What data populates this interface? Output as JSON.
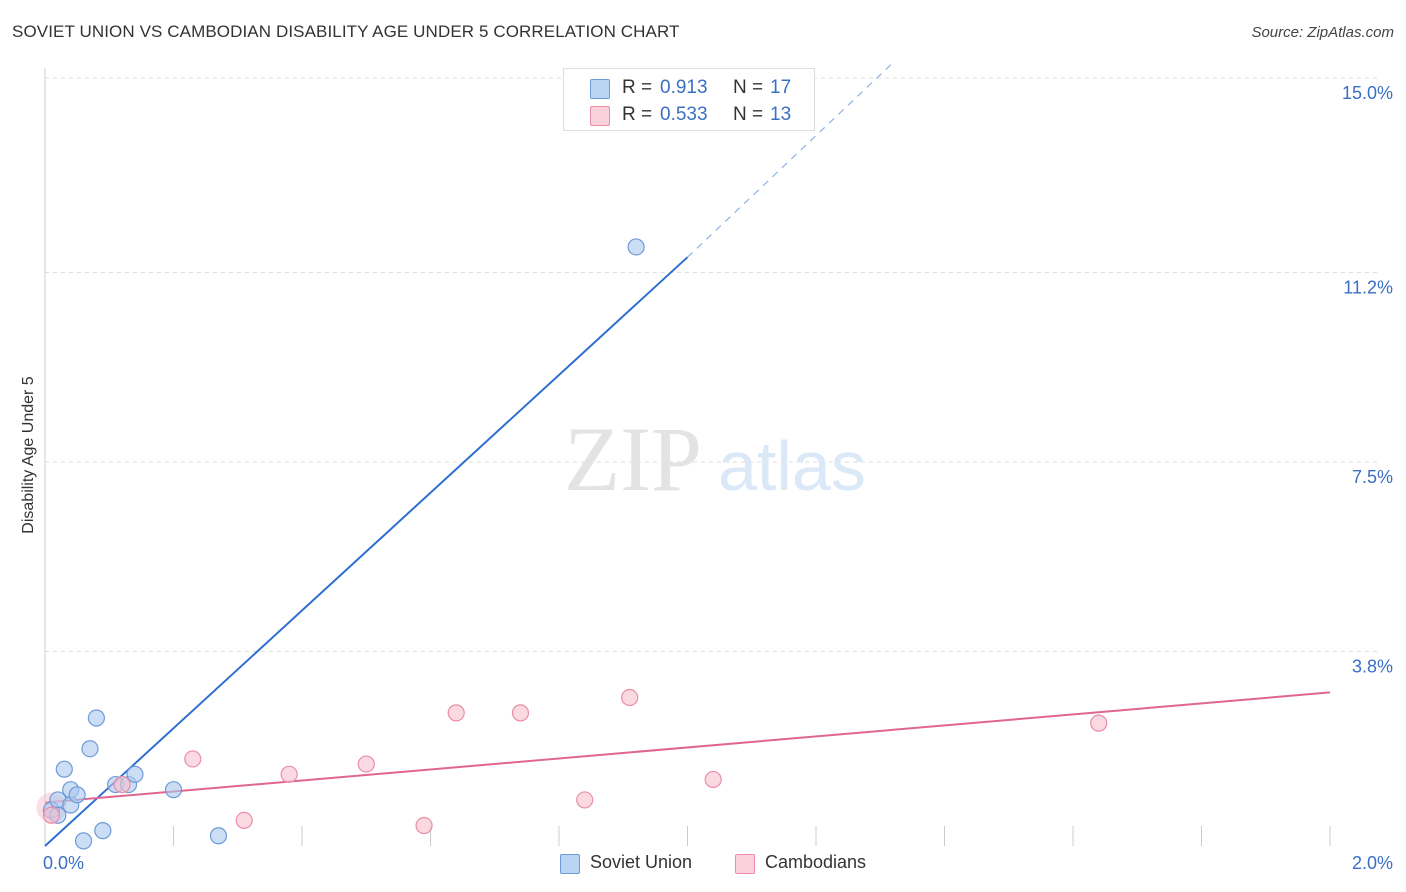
{
  "title": "SOVIET UNION VS CAMBODIAN DISABILITY AGE UNDER 5 CORRELATION CHART",
  "source": "Source: ZipAtlas.com",
  "watermark": {
    "zip": "ZIP",
    "atlas": "atlas"
  },
  "colors": {
    "blue_fill": "#aac8ee",
    "blue_stroke": "#6f9ad8",
    "blue_line": "#2e6fd0",
    "pink_fill": "#f7c0cf",
    "pink_stroke": "#e98da8",
    "pink_line": "#e0668f",
    "accent_text": "#3a6fc4",
    "grid": "#dddddd"
  },
  "legend_top": [
    {
      "series": "blue",
      "r_label": "R =",
      "r_value": "0.913",
      "n_label": "N =",
      "n_value": "17"
    },
    {
      "series": "pink",
      "r_label": "R =",
      "r_value": "0.533",
      "n_label": "N =",
      "n_value": "13"
    }
  ],
  "legend_bottom": [
    {
      "series": "blue",
      "label": "Soviet Union"
    },
    {
      "series": "pink",
      "label": "Cambodians"
    }
  ],
  "chart_data": {
    "type": "scatter",
    "title": "SOVIET UNION VS CAMBODIAN DISABILITY AGE UNDER 5 CORRELATION CHART",
    "xlabel": "",
    "ylabel": "Disability Age Under 5",
    "xlim": [
      0.0,
      2.0
    ],
    "ylim": [
      0.0,
      15.0
    ],
    "x_tick_labels": [
      "0.0%",
      "2.0%"
    ],
    "y_ticks": [
      3.8,
      7.5,
      11.2,
      15.0
    ],
    "y_tick_labels": [
      "3.8%",
      "7.5%",
      "11.2%",
      "15.0%"
    ],
    "grid": true,
    "legend_position": "top-center",
    "series": [
      {
        "name": "Soviet Union",
        "color_key": "blue",
        "points": [
          {
            "x": 0.01,
            "y": 0.7
          },
          {
            "x": 0.02,
            "y": 0.9
          },
          {
            "x": 0.03,
            "y": 1.5
          },
          {
            "x": 0.04,
            "y": 0.8
          },
          {
            "x": 0.04,
            "y": 1.1
          },
          {
            "x": 0.05,
            "y": 1.0
          },
          {
            "x": 0.06,
            "y": 0.1
          },
          {
            "x": 0.07,
            "y": 1.9
          },
          {
            "x": 0.08,
            "y": 2.5
          },
          {
            "x": 0.09,
            "y": 0.3
          },
          {
            "x": 0.11,
            "y": 1.2
          },
          {
            "x": 0.13,
            "y": 1.2
          },
          {
            "x": 0.14,
            "y": 1.4
          },
          {
            "x": 0.2,
            "y": 1.1
          },
          {
            "x": 0.27,
            "y": 0.2
          },
          {
            "x": 0.92,
            "y": 11.7
          },
          {
            "x": 0.02,
            "y": 0.6
          }
        ],
        "trendline": {
          "x1": 0.0,
          "y1": 0.0,
          "x2": 1.0,
          "y2": 11.5,
          "dashed_to_x": 1.32,
          "dashed_to_y": 15.3
        }
      },
      {
        "name": "Cambodians",
        "color_key": "pink",
        "points": [
          {
            "x": 0.01,
            "y": 0.6
          },
          {
            "x": 0.12,
            "y": 1.2
          },
          {
            "x": 0.23,
            "y": 1.7
          },
          {
            "x": 0.31,
            "y": 0.5
          },
          {
            "x": 0.38,
            "y": 1.4
          },
          {
            "x": 0.5,
            "y": 1.6
          },
          {
            "x": 0.59,
            "y": 0.4
          },
          {
            "x": 0.64,
            "y": 2.6
          },
          {
            "x": 0.74,
            "y": 2.6
          },
          {
            "x": 0.84,
            "y": 0.9
          },
          {
            "x": 0.91,
            "y": 2.9
          },
          {
            "x": 1.04,
            "y": 1.3
          },
          {
            "x": 1.64,
            "y": 2.4
          }
        ],
        "trendline": {
          "x1": 0.0,
          "y1": 0.85,
          "x2": 2.0,
          "y2": 3.0
        }
      }
    ]
  }
}
